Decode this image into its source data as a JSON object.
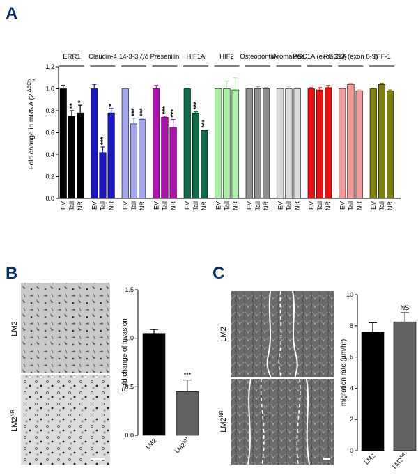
{
  "panels": {
    "a": "A",
    "b": "B",
    "c": "C"
  },
  "chart_data": [
    {
      "id": "A",
      "type": "bar",
      "ylabel": "Fold change in mRNA (2",
      "ylabel_sup": "-ΔΔCt",
      "ylabel_end": ")",
      "ylim": [
        0,
        1.2
      ],
      "yticks": [
        "0.0",
        "0.2",
        "0.4",
        "0.6",
        "0.8",
        "1.0",
        "1.2"
      ],
      "categories": [
        "EV",
        "Tail",
        "NR"
      ],
      "groups": [
        {
          "name": "ERR1",
          "color": "#000000",
          "values": [
            1.0,
            0.75,
            0.78
          ],
          "errors": [
            0.03,
            0.05,
            0.07
          ],
          "sig": [
            "",
            "**",
            "*"
          ]
        },
        {
          "name": "Claudin-4",
          "color": "#1a17c4",
          "values": [
            1.0,
            0.42,
            0.78
          ],
          "errors": [
            0.04,
            0.05,
            0.04
          ],
          "sig": [
            "",
            "***",
            "*"
          ]
        },
        {
          "name": "14-3-3 ζ/δ",
          "color": "#a4a6ee",
          "values": [
            1.0,
            0.68,
            0.72
          ],
          "errors": [
            0.005,
            0.05,
            0.01
          ],
          "sig": [
            "",
            "***",
            "***"
          ]
        },
        {
          "name": "Presenilin",
          "color": "#b010b0",
          "values": [
            1.0,
            0.74,
            0.65
          ],
          "errors": [
            0.03,
            0.01,
            0.07
          ],
          "sig": [
            "",
            "***",
            "***"
          ]
        },
        {
          "name": "HIF1A",
          "color": "#0e6b48",
          "values": [
            1.0,
            0.78,
            0.62
          ],
          "errors": [
            0.005,
            0.01,
            0.005
          ],
          "sig": [
            "",
            "***",
            "***"
          ]
        },
        {
          "name": "HIF2",
          "color": "#a9f0a4",
          "values": [
            1.0,
            1.0,
            0.99
          ],
          "errors": [
            0.005,
            0.07,
            0.11
          ],
          "sig": [
            "",
            "",
            ""
          ]
        },
        {
          "name": "Osteopontin",
          "color": "#8e8e8e",
          "values": [
            1.0,
            1.0,
            1.0
          ],
          "errors": [
            0.005,
            0.02,
            0.01
          ],
          "sig": [
            "",
            "",
            ""
          ]
        },
        {
          "name": "Aromatase",
          "color": "#dadada",
          "values": [
            1.0,
            1.0,
            1.0
          ],
          "errors": [
            0.005,
            0.02,
            0.01
          ],
          "sig": [
            "",
            "",
            ""
          ]
        },
        {
          "name": "PGC1A (exon 2-3)",
          "color": "#ee1111",
          "values": [
            1.0,
            0.99,
            1.01
          ],
          "errors": [
            0.01,
            0.02,
            0.02
          ],
          "sig": [
            "",
            "",
            ""
          ]
        },
        {
          "name": "PGC1A (exon 8-9)",
          "color": "#f39a9a",
          "values": [
            1.0,
            1.04,
            0.98
          ],
          "errors": [
            0.005,
            0.01,
            0.01
          ],
          "sig": [
            "",
            "",
            ""
          ]
        },
        {
          "name": "TFF-1",
          "color": "#7f7f10",
          "values": [
            1.0,
            1.04,
            0.98
          ],
          "errors": [
            0.005,
            0.01,
            0.01
          ],
          "sig": [
            "",
            "",
            ""
          ]
        }
      ]
    },
    {
      "id": "B",
      "type": "bar",
      "ylabel": "Fold change of invasion",
      "ylim": [
        0,
        1.5
      ],
      "yticks": [
        "0.0",
        "0.5",
        "1.0",
        "1.5"
      ],
      "categories": [
        "LM2",
        "LM2"
      ],
      "category_sup": [
        "",
        "NR"
      ],
      "values": [
        1.05,
        0.45
      ],
      "errors": [
        0.04,
        0.12
      ],
      "colors": [
        "#000000",
        "#626262"
      ],
      "sig": [
        "",
        "***"
      ]
    },
    {
      "id": "C",
      "type": "bar",
      "ylabel": "migration rate (µm/hr)",
      "ylim": [
        0,
        10
      ],
      "yticks": [
        "0",
        "2",
        "4",
        "6",
        "8",
        "10"
      ],
      "categories": [
        "LM2",
        "LM2"
      ],
      "category_sup": [
        "",
        "NR"
      ],
      "values": [
        7.6,
        8.25
      ],
      "errors": [
        0.6,
        0.6
      ],
      "colors": [
        "#000000",
        "#626262"
      ],
      "sig": [
        "",
        "NS"
      ]
    }
  ],
  "micrographs": {
    "b_top": "LM2",
    "b_bottom": "LM2",
    "b_bottom_sup": "NR",
    "c_top": "LM2",
    "c_bottom": "LM2",
    "c_bottom_sup": "NR"
  }
}
